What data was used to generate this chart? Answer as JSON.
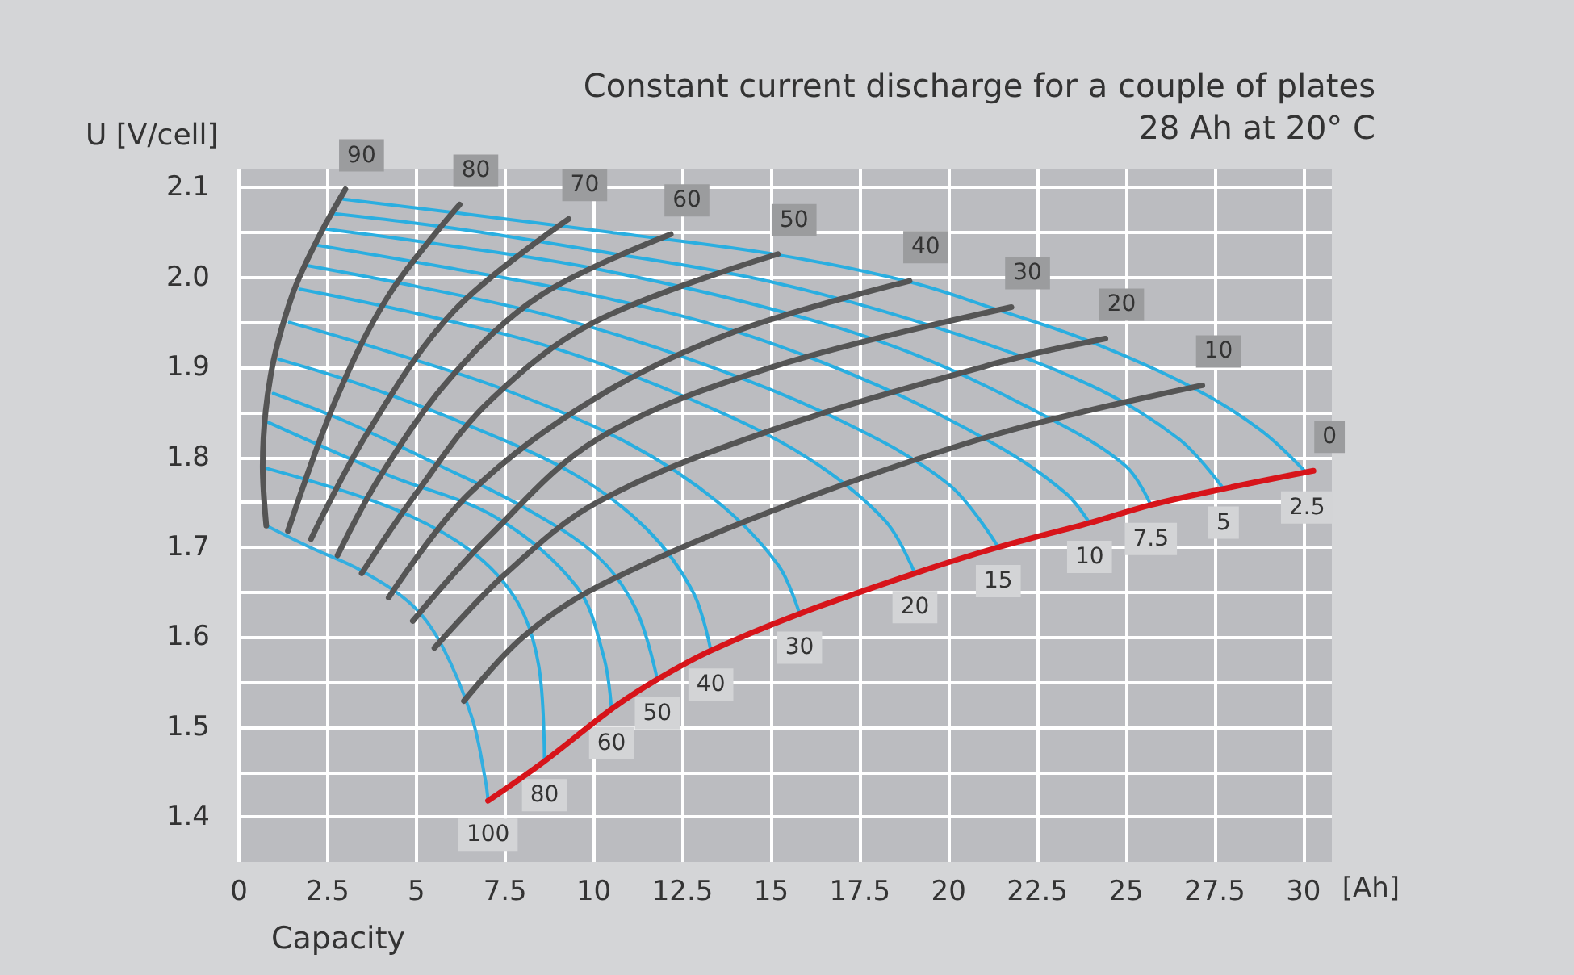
{
  "chart_data": {
    "type": "line",
    "title": "Constant current discharge for a couple of plates",
    "subtitle": "28 Ah at 20° C",
    "xlabel": "Capacity",
    "ylabel": "U [V/cell]",
    "annotations": [
      "[Ah]"
    ],
    "xlim": [
      0,
      30.8
    ],
    "ylim": [
      1.35,
      2.12
    ],
    "xticks": [
      0,
      2.5,
      5,
      7.5,
      10,
      12.5,
      15,
      17.5,
      20,
      22.5,
      25,
      27.5,
      30
    ],
    "yticks": [
      {
        "value": 1.4,
        "label": "1.4"
      },
      {
        "value": 1.45,
        "label": null
      },
      {
        "value": 1.5,
        "label": "1.5"
      },
      {
        "value": 1.55,
        "label": null
      },
      {
        "value": 1.6,
        "label": "1.6"
      },
      {
        "value": 1.65,
        "label": null
      },
      {
        "value": 1.7,
        "label": "1.7"
      },
      {
        "value": 1.75,
        "label": null
      },
      {
        "value": 1.8,
        "label": "1.8"
      },
      {
        "value": 1.85,
        "label": null
      },
      {
        "value": 1.9,
        "label": "1.9"
      },
      {
        "value": 1.95,
        "label": null
      },
      {
        "value": 2,
        "label": "2.0"
      },
      {
        "value": 2.05,
        "label": null
      },
      {
        "value": 2.1,
        "label": "2.1"
      }
    ],
    "grid": true,
    "legend": false,
    "marker": "none",
    "line_style": "solid",
    "series": [
      {
        "name": "2.5",
        "color": "#2aaee0",
        "x": [
          2.94,
          6.5,
          10.5,
          15.2,
          18.9,
          21.3,
          23.9,
          26.9,
          28.8,
          30.1
        ],
        "values": [
          2.087,
          2.07,
          2.05,
          2.025,
          1.995,
          1.965,
          1.93,
          1.877,
          1.83,
          1.782
        ]
      },
      {
        "name": "5",
        "color": "#2aaee0",
        "x": [
          2.63,
          6,
          10,
          15,
          20,
          24,
          26.5,
          27.75
        ],
        "values": [
          2.071,
          2.055,
          2.03,
          1.995,
          1.94,
          1.88,
          1.82,
          1.765
        ]
      },
      {
        "name": "7.5",
        "color": "#2aaee0",
        "x": [
          2.41,
          6,
          10,
          15,
          19,
          23,
          25,
          25.7
        ],
        "values": [
          2.054,
          2.035,
          2.01,
          1.965,
          1.915,
          1.84,
          1.79,
          1.747
        ]
      },
      {
        "name": "10",
        "color": "#2aaee0",
        "x": [
          2.18,
          6,
          10,
          14,
          18,
          21.5,
          23.3,
          23.97
        ],
        "values": [
          2.036,
          2.01,
          1.98,
          1.94,
          1.88,
          1.81,
          1.76,
          1.727
        ]
      },
      {
        "name": "15",
        "color": "#2aaee0",
        "x": [
          1.95,
          5,
          9,
          13,
          17,
          20,
          21.4
        ],
        "values": [
          2.013,
          1.99,
          1.955,
          1.905,
          1.84,
          1.77,
          1.7
        ]
      },
      {
        "name": "20",
        "color": "#2aaee0",
        "x": [
          1.72,
          5,
          9,
          13,
          16,
          18.2,
          19.05
        ],
        "values": [
          1.987,
          1.96,
          1.92,
          1.86,
          1.8,
          1.73,
          1.671
        ]
      },
      {
        "name": "30",
        "color": "#2aaee0",
        "x": [
          1.42,
          4,
          7.5,
          11,
          13.5,
          15.2,
          15.8
        ],
        "values": [
          1.95,
          1.92,
          1.875,
          1.815,
          1.75,
          1.68,
          1.626
        ]
      },
      {
        "name": "40",
        "color": "#2aaee0",
        "x": [
          1.12,
          3.5,
          6.5,
          9.5,
          11.5,
          12.8,
          13.3
        ],
        "values": [
          1.909,
          1.88,
          1.835,
          1.78,
          1.72,
          1.65,
          1.585
        ]
      },
      {
        "name": "50",
        "color": "#2aaee0",
        "x": [
          0.97,
          3,
          5.7,
          8,
          10.1,
          11.2,
          11.79
        ],
        "values": [
          1.871,
          1.84,
          1.79,
          1.745,
          1.69,
          1.63,
          1.553
        ]
      },
      {
        "name": "60",
        "color": "#2aaee0",
        "x": [
          0.82,
          4.22,
          7.25,
          9.52,
          10.27,
          10.5
        ],
        "values": [
          1.839,
          1.78,
          1.733,
          1.656,
          1.58,
          1.52
        ]
      },
      {
        "name": "80",
        "color": "#2aaee0",
        "x": [
          0.74,
          4.22,
          6.5,
          7.85,
          8.45,
          8.61
        ],
        "values": [
          1.788,
          1.745,
          1.697,
          1.639,
          1.568,
          1.462
        ]
      },
      {
        "name": "100",
        "color": "#33aee0",
        "x": [
          0.77,
          2.0,
          3.45,
          4.9,
          5.73,
          6.57,
          6.95,
          7.02
        ],
        "values": [
          1.724,
          1.7,
          1.674,
          1.635,
          1.59,
          1.51,
          1.44,
          1.418
        ]
      },
      {
        "name": "90",
        "color": "#555555",
        "x": [
          0.77,
          0.67,
          0.89,
          1.5,
          2.25,
          3.0
        ],
        "values": [
          1.724,
          1.79,
          1.89,
          1.98,
          2.045,
          2.098
        ]
      },
      {
        "name": "80",
        "color": "#555555",
        "x": [
          1.38,
          2.71,
          4.22,
          6.22
        ],
        "values": [
          1.718,
          1.862,
          1.98,
          2.081
        ]
      },
      {
        "name": "70",
        "color": "#555555",
        "x": [
          2.03,
          3.62,
          6.04,
          9.29
        ],
        "values": [
          1.709,
          1.827,
          1.962,
          2.065
        ]
      },
      {
        "name": "60",
        "color": "#555555",
        "x": [
          2.78,
          4,
          6,
          8.5,
          12.17
        ],
        "values": [
          1.691,
          1.78,
          1.89,
          1.98,
          2.048
        ]
      },
      {
        "name": "50",
        "color": "#555555",
        "x": [
          3.46,
          5,
          7,
          10,
          15.19
        ],
        "values": [
          1.671,
          1.76,
          1.86,
          1.95,
          2.026
        ]
      },
      {
        "name": "40",
        "color": "#555555",
        "x": [
          4.22,
          6.5,
          10.1,
          14,
          18.9
        ],
        "values": [
          1.644,
          1.76,
          1.867,
          1.94,
          1.996
        ]
      },
      {
        "name": "30",
        "color": "#555555",
        "x": [
          4.9,
          7,
          10.1,
          15,
          21.77
        ],
        "values": [
          1.618,
          1.71,
          1.82,
          1.9,
          1.967
        ]
      },
      {
        "name": "20",
        "color": "#555555",
        "x": [
          5.51,
          7.5,
          10.1,
          15,
          21.47,
          24.42
        ],
        "values": [
          1.588,
          1.67,
          1.75,
          1.83,
          1.906,
          1.932
        ]
      },
      {
        "name": "10",
        "color": "#555555",
        "x": [
          6.34,
          8,
          10.1,
          15,
          21.47,
          27.15
        ],
        "values": [
          1.529,
          1.6,
          1.656,
          1.74,
          1.827,
          1.88
        ]
      },
      {
        "name": "0",
        "color": "#d7141a",
        "x": [
          7.02,
          8.61,
          10.5,
          11.79,
          13.3,
          15.8,
          19.05,
          21.4,
          23.97,
          25.7,
          27.75,
          30.28
        ],
        "values": [
          1.418,
          1.462,
          1.52,
          1.553,
          1.585,
          1.626,
          1.671,
          1.7,
          1.727,
          1.747,
          1.765,
          1.785
        ]
      }
    ]
  }
}
